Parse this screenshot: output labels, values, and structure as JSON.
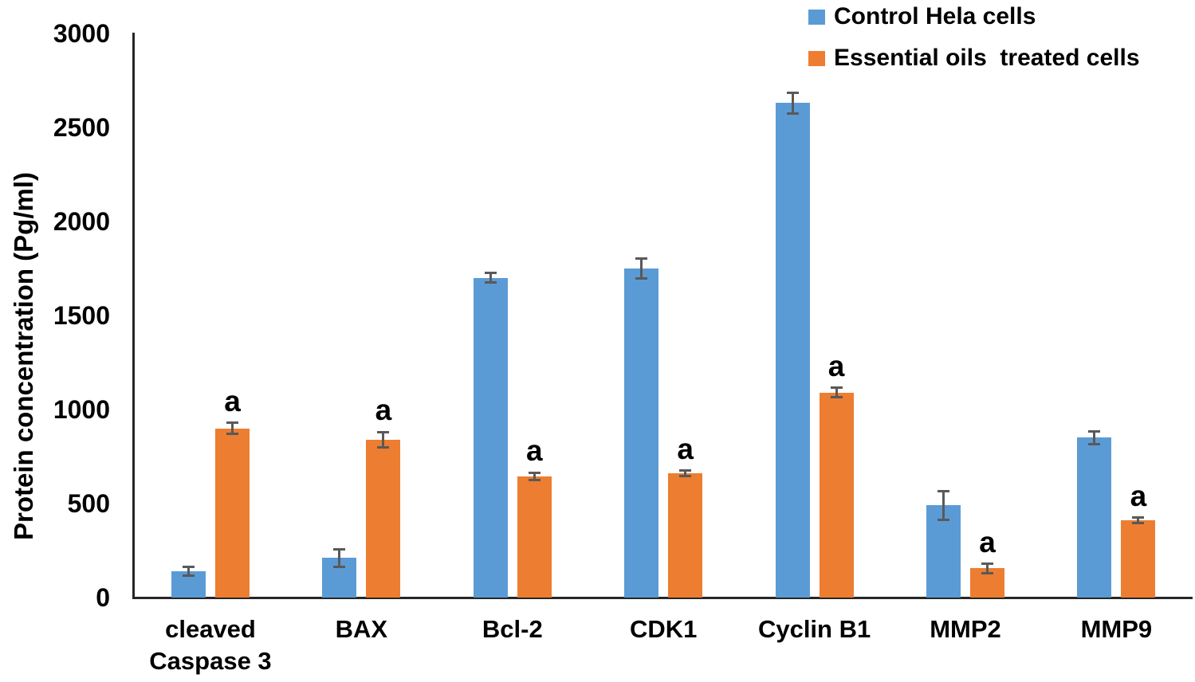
{
  "chart_data": {
    "type": "bar",
    "title": "",
    "xlabel": "",
    "ylabel": "Protein concentration (Pg/ml)",
    "ylim": [
      0,
      3000
    ],
    "yticks": [
      0,
      500,
      1000,
      1500,
      2000,
      2500,
      3000
    ],
    "grid": false,
    "legend_position": "top-right",
    "categories": [
      "cleaved Caspase 3",
      "BAX",
      "Bcl-2",
      "CDK1",
      "Cyclin B1",
      "MMP2",
      "MMP9"
    ],
    "category_label_lines": [
      [
        "cleaved",
        "Caspase 3"
      ],
      [
        "BAX"
      ],
      [
        "Bcl-2"
      ],
      [
        "CDK1"
      ],
      [
        "Cyclin B1"
      ],
      [
        "MMP2"
      ],
      [
        "MMP9"
      ]
    ],
    "series": [
      {
        "name": "Control Hela cells",
        "color": "#5B9BD5",
        "values": [
          140,
          210,
          1700,
          1750,
          2630,
          490,
          850
        ],
        "errors": [
          25,
          45,
          25,
          55,
          55,
          75,
          35
        ]
      },
      {
        "name": "Essential oils  treated cells",
        "color": "#ED7D31",
        "values": [
          900,
          840,
          645,
          660,
          1090,
          155,
          410
        ],
        "errors": [
          30,
          40,
          20,
          15,
          25,
          25,
          15
        ]
      }
    ],
    "sig_labels": [
      "a",
      "a",
      "a",
      "a",
      "a",
      "a",
      "a"
    ],
    "sig_label_on_series": "Essential oils  treated cells",
    "error_bar_color": "#595959",
    "axis_color": "#262626",
    "text_color": "#000000"
  }
}
